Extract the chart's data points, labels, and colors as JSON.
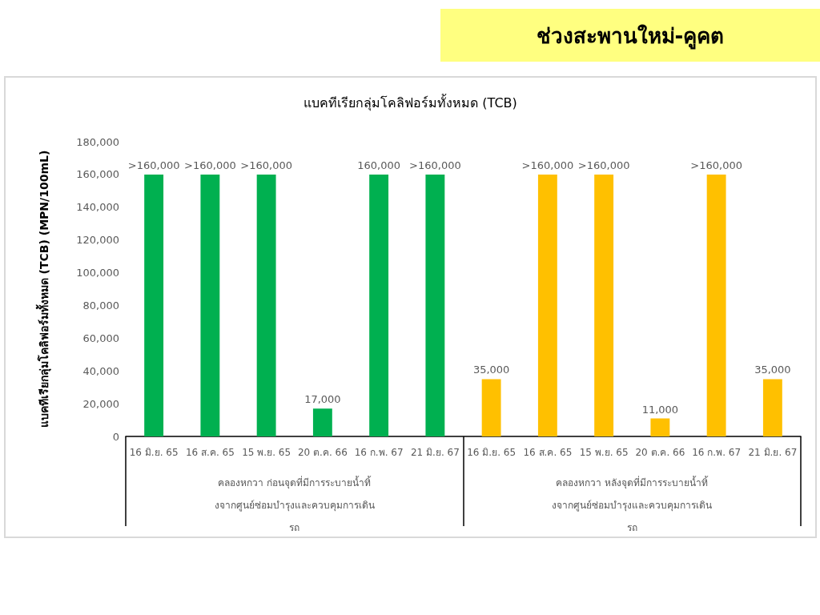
{
  "chart_data": {
    "type": "bar",
    "title": "ช่วงสะพานใหม่-คูคต",
    "subtitle": "แบคทีเรียกลุ่มโคลิฟอร์มทั้งหมด (TCB)",
    "ylabel": "แบคทีเรียกลุ่มโคลิฟอร์มทั้งหมด (TCB) (MPN/100mL)",
    "categories": [
      "16 มิ.ย. 65",
      "16 ส.ค. 65",
      "15 พ.ย. 65",
      "20 ต.ค. 66",
      "16 ก.พ. 67",
      "21 มิ.ย. 67",
      "16 มิ.ย. 65",
      "16 ส.ค. 65",
      "15 พ.ย. 65",
      "20 ต.ค. 66",
      "16 ก.พ. 67",
      "21 มิ.ย. 67"
    ],
    "values": [
      160000,
      160000,
      160000,
      17000,
      160000,
      160000,
      35000,
      160000,
      160000,
      11000,
      160000,
      35000
    ],
    "colors": [
      "#00b050",
      "#00b050",
      "#00b050",
      "#00b050",
      "#00b050",
      "#00b050",
      "#ffc000",
      "#ffc000",
      "#ffc000",
      "#ffc000",
      "#ffc000",
      "#ffc000"
    ],
    "value_labels": [
      ">160,000",
      ">160,000",
      ">160,000",
      "17,000",
      "160,000",
      ">160,000",
      "35,000",
      ">160,000",
      ">160,000",
      "11,000",
      ">160,000",
      "35,000"
    ],
    "annotations": [
      "คลองหกวา ก่อนจุดที่มีการระบายน้ำทิ้งจากศูนย์ซ่อมบำรุงและควบคุมการเดินรถ",
      "คลองหกวา หลังจุดที่มีการระบายน้ำทิ้งจากศูนย์ซ่อมบำรุงและควบคุมการเดินรถ"
    ],
    "ylim": [
      0,
      180000
    ],
    "yticks": [
      {
        "value": 0,
        "label": "0"
      },
      {
        "value": 20000,
        "label": "20,000"
      },
      {
        "value": 40000,
        "label": "40,000"
      },
      {
        "value": 60000,
        "label": "60,000"
      },
      {
        "value": 80000,
        "label": "80,000"
      },
      {
        "value": 100000,
        "label": "100,000"
      },
      {
        "value": 120000,
        "label": "120,000"
      },
      {
        "value": 140000,
        "label": "140,000"
      },
      {
        "value": 160000,
        "label": "160,000"
      },
      {
        "value": 180000,
        "label": "180,000"
      }
    ],
    "grid": false
  }
}
